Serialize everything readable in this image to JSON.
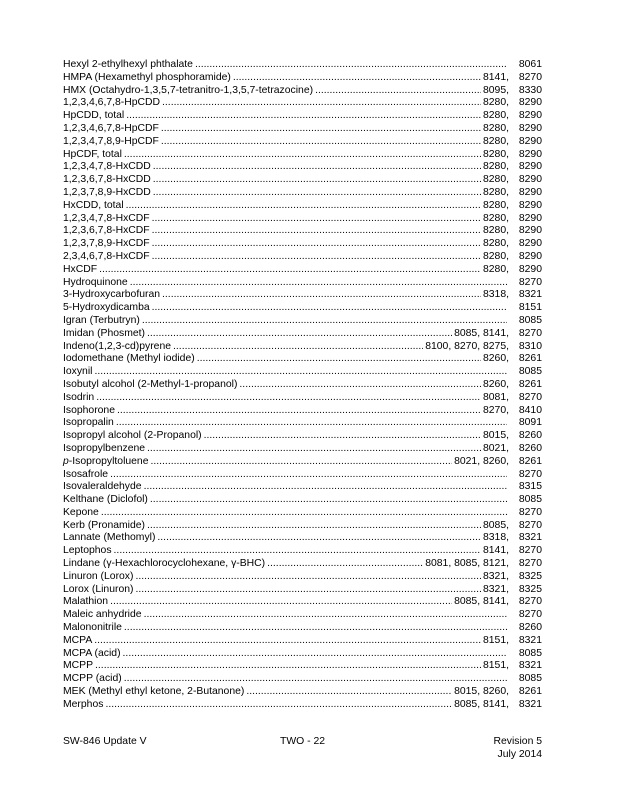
{
  "colors": {
    "text": "#000000",
    "background": "#ffffff"
  },
  "index_list": {
    "entries": [
      {
        "name": "Hexyl 2-ethylhexyl phthalate",
        "extras": "",
        "final": "8061"
      },
      {
        "name": "HMPA (Hexamethyl phosphoramide)",
        "extras": "8141,",
        "final": "8270"
      },
      {
        "name": "HMX (Octahydro-1,3,5,7-tetranitro-1,3,5,7-tetrazocine)",
        "extras": "8095,",
        "final": "8330"
      },
      {
        "name": "1,2,3,4,6,7,8-HpCDD",
        "extras": "8280,",
        "final": "8290"
      },
      {
        "name": "HpCDD, total",
        "extras": "8280,",
        "final": "8290"
      },
      {
        "name": "1,2,3,4,6,7,8-HpCDF",
        "extras": "8280,",
        "final": "8290"
      },
      {
        "name": "1,2,3,4,7,8,9-HpCDF",
        "extras": "8280,",
        "final": "8290"
      },
      {
        "name": "HpCDF, total",
        "extras": "8280,",
        "final": "8290"
      },
      {
        "name": "1,2,3,4,7,8-HxCDD",
        "extras": "8280,",
        "final": "8290"
      },
      {
        "name": "1,2,3,6,7,8-HxCDD",
        "extras": "8280,",
        "final": "8290"
      },
      {
        "name": "1,2,3,7,8,9-HxCDD",
        "extras": "8280,",
        "final": "8290"
      },
      {
        "name": "HxCDD, total",
        "extras": "8280,",
        "final": "8290"
      },
      {
        "name": "1,2,3,4,7,8-HxCDF",
        "extras": "8280,",
        "final": "8290"
      },
      {
        "name": "1,2,3,6,7,8-HxCDF",
        "extras": "8280,",
        "final": "8290"
      },
      {
        "name": "1,2,3,7,8,9-HxCDF",
        "extras": "8280,",
        "final": "8290"
      },
      {
        "name": "2,3,4,6,7,8-HxCDF",
        "extras": "8280,",
        "final": "8290"
      },
      {
        "name": "HxCDF",
        "extras": "8280,",
        "final": "8290"
      },
      {
        "name": "Hydroquinone",
        "extras": "",
        "final": "8270"
      },
      {
        "name": "3-Hydroxycarbofuran",
        "extras": "8318,",
        "final": "8321"
      },
      {
        "name": "5-Hydroxydicamba",
        "extras": "",
        "final": "8151"
      },
      {
        "name": "Igran (Terbutryn)",
        "extras": "",
        "final": "8085"
      },
      {
        "name": "Imidan (Phosmet)",
        "extras": "8085, 8141,",
        "final": "8270"
      },
      {
        "name": "Indeno(1,2,3-cd)pyrene",
        "extras": "8100, 8270, 8275,",
        "final": "8310"
      },
      {
        "name": "Iodomethane (Methyl iodide)",
        "extras": "8260,",
        "final": "8261"
      },
      {
        "name": "Ioxynil",
        "extras": "",
        "final": "8085"
      },
      {
        "name": "Isobutyl alcohol (2-Methyl-1-propanol)",
        "extras": "8260,",
        "final": "8261"
      },
      {
        "name": "Isodrin",
        "extras": "8081,",
        "final": "8270"
      },
      {
        "name": "Isophorone",
        "extras": "8270,",
        "final": "8410"
      },
      {
        "name": "Isopropalin",
        "extras": "",
        "final": "8091"
      },
      {
        "name": "Isopropyl alcohol (2-Propanol)",
        "extras": "8015,",
        "final": "8260"
      },
      {
        "name": "Isopropylbenzene",
        "extras": "8021,",
        "final": "8260"
      },
      {
        "italic": "p",
        "name": "-Isopropyltoluene",
        "extras": "8021, 8260,",
        "final": "8261"
      },
      {
        "name": "Isosafrole",
        "extras": "",
        "final": "8270"
      },
      {
        "name": "Isovaleraldehyde",
        "extras": "",
        "final": "8315"
      },
      {
        "name": "Kelthane (Diclofol)",
        "extras": "",
        "final": "8085"
      },
      {
        "name": "Kepone",
        "extras": "",
        "final": "8270"
      },
      {
        "name": "Kerb (Pronamide)",
        "extras": "8085,",
        "final": "8270"
      },
      {
        "name": "Lannate (Methomyl)",
        "extras": "8318,",
        "final": "8321"
      },
      {
        "name": "Leptophos",
        "extras": "8141,",
        "final": "8270"
      },
      {
        "name": "Lindane (γ-Hexachlorocyclohexane, γ-BHC)",
        "extras": "8081, 8085, 8121,",
        "final": "8270"
      },
      {
        "name": "Linuron (Lorox)",
        "extras": "8321,",
        "final": "8325"
      },
      {
        "name": "Lorox (Linuron)",
        "extras": "8321,",
        "final": "8325"
      },
      {
        "name": "Malathion",
        "extras": "8085, 8141,",
        "final": "8270"
      },
      {
        "name": "Maleic anhydride",
        "extras": "",
        "final": "8270"
      },
      {
        "name": "Malononitrile",
        "extras": "",
        "final": "8260"
      },
      {
        "name": "MCPA",
        "extras": "8151,",
        "final": "8321"
      },
      {
        "name": "MCPA (acid)",
        "extras": "",
        "final": "8085"
      },
      {
        "name": "MCPP",
        "extras": "8151,",
        "final": "8321"
      },
      {
        "name": "MCPP (acid)",
        "extras": "",
        "final": "8085"
      },
      {
        "name": "MEK (Methyl ethyl ketone, 2-Butanone)",
        "extras": "8015, 8260,",
        "final": "8261"
      },
      {
        "name": "Merphos",
        "extras": "8085, 8141,",
        "final": "8321"
      }
    ]
  },
  "footer": {
    "left": "SW-846 Update V",
    "center": "TWO - 22",
    "right_line1": "Revision 5",
    "right_line2": "July 2014"
  }
}
